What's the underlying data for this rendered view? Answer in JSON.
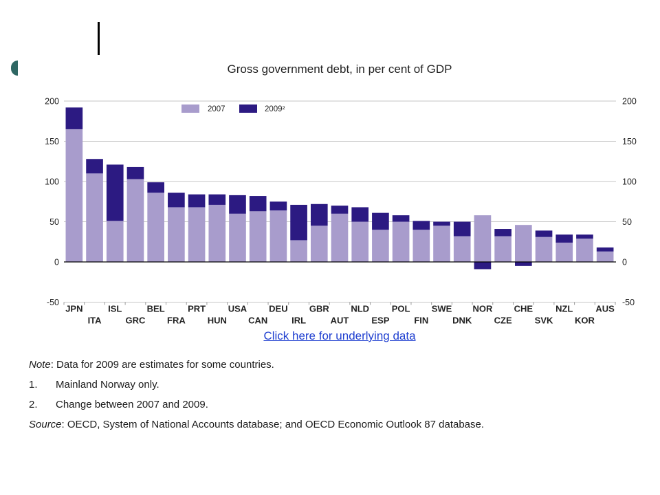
{
  "decor": {
    "bar_color": "#000000",
    "circle_color": "#2e6763"
  },
  "chart_data": {
    "type": "bar",
    "stacked": true,
    "title": "Gross government debt, in per cent of GDP",
    "categories": [
      "JPN",
      "ITA",
      "ISL",
      "GRC",
      "BEL",
      "FRA",
      "PRT",
      "HUN",
      "USA",
      "CAN",
      "DEU",
      "IRL",
      "GBR",
      "AUT",
      "NLD",
      "ESP",
      "POL",
      "FIN",
      "SWE",
      "DNK",
      "NOR",
      "CZE",
      "CHE",
      "SVK",
      "NZL",
      "KOR",
      "AUS"
    ],
    "series": [
      {
        "name": "2007",
        "color": "#a89ccc",
        "values": [
          165,
          110,
          51,
          103,
          86,
          68,
          68,
          71,
          60,
          63,
          64,
          27,
          45,
          60,
          50,
          40,
          50,
          40,
          45,
          32,
          58,
          32,
          46,
          31,
          24,
          29,
          13
        ]
      },
      {
        "name": "2009²",
        "color": "#2c1a82",
        "values": [
          27,
          18,
          70,
          15,
          13,
          18,
          16,
          13,
          23,
          19,
          11,
          44,
          27,
          10,
          18,
          21,
          8,
          11,
          5,
          18,
          -9,
          9,
          -5,
          8,
          10,
          5,
          5
        ]
      }
    ],
    "ylim": [
      -50,
      200
    ],
    "yticks": [
      200,
      150,
      100,
      50,
      0,
      -50
    ],
    "grid": true,
    "legend": "top-left"
  },
  "link": {
    "label": "Click here for underlying data",
    "color": "#1f3fd0"
  },
  "notes": {
    "note_label": "Note",
    "note_text": ": Data for 2009 are estimates for some countries.",
    "footnotes": [
      {
        "number": "1.",
        "text": "Mainland Norway only."
      },
      {
        "number": "2.",
        "text": "Change between 2007 and 2009."
      }
    ],
    "source_label": "Source",
    "source_text": ": OECD, System of National Accounts database; and OECD Economic Outlook 87 database."
  }
}
